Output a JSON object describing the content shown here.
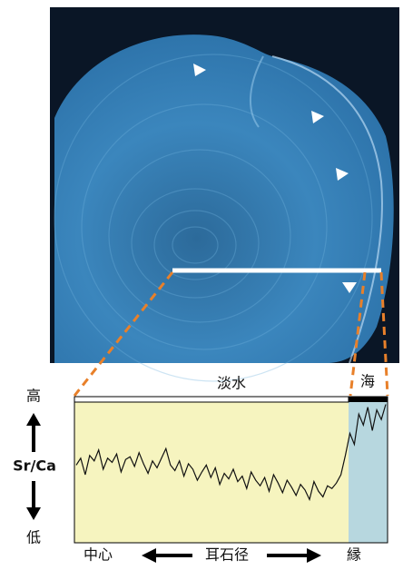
{
  "labels": {
    "freshwater": "淡水",
    "sea": "海",
    "high": "高",
    "ratio": "Sr/Ca",
    "low": "低",
    "center": "中心",
    "radius": "耳石径",
    "edge": "縁"
  },
  "profile": {
    "ylim": [
      0,
      100
    ],
    "values": [
      55,
      60,
      48,
      62,
      58,
      66,
      52,
      60,
      57,
      63,
      50,
      59,
      61,
      54,
      64,
      56,
      49,
      58,
      53,
      60,
      67,
      55,
      51,
      58,
      47,
      56,
      52,
      44,
      50,
      55,
      46,
      53,
      41,
      49,
      45,
      52,
      43,
      47,
      38,
      50,
      44,
      40,
      46,
      36,
      48,
      42,
      35,
      44,
      39,
      33,
      41,
      37,
      30,
      43,
      36,
      32,
      40,
      38,
      42,
      48,
      62,
      78,
      70,
      92,
      84,
      97,
      80,
      95,
      88,
      99
    ]
  }
}
